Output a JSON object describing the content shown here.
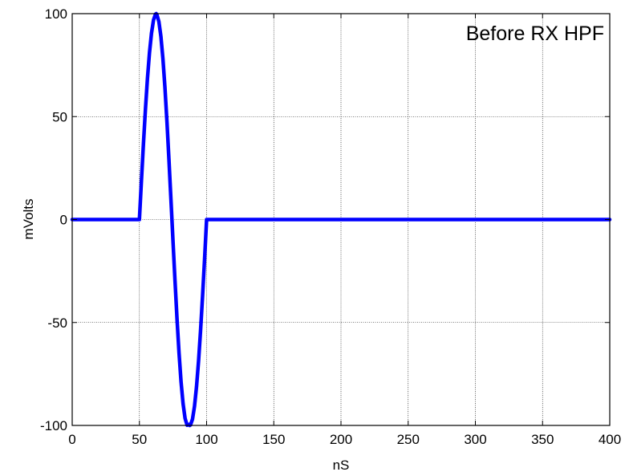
{
  "chart_data": {
    "type": "line",
    "title": "",
    "xlabel": "nS",
    "ylabel": "mVolts",
    "xlim": [
      0,
      400
    ],
    "ylim": [
      -100,
      100
    ],
    "xticks": [
      0,
      50,
      100,
      150,
      200,
      250,
      300,
      350,
      400
    ],
    "yticks": [
      -100,
      -50,
      0,
      50,
      100
    ],
    "x_tick_labels": [
      "0",
      "50",
      "100",
      "150",
      "200",
      "250",
      "300",
      "350",
      "400"
    ],
    "y_tick_labels": [
      "-100",
      "-50",
      "0",
      "50",
      "100"
    ],
    "grid": true,
    "legend_position": "top-right",
    "series": [
      {
        "name": "Before RX HPF",
        "color": "#0000ff",
        "x": [
          0,
          49,
          50,
          51.5,
          53,
          54.5,
          56,
          57.5,
          59,
          60.5,
          62,
          62.5,
          63,
          64.5,
          66,
          67.5,
          69,
          70.5,
          72,
          73.5,
          75,
          76.5,
          78,
          79.5,
          81,
          82.5,
          84,
          85.5,
          87,
          87.5,
          88,
          89.5,
          91,
          92.5,
          94,
          95.5,
          97,
          98.5,
          100,
          400
        ],
        "y": [
          0,
          0,
          0,
          18.7,
          36.8,
          53.6,
          68.6,
          81.0,
          90.5,
          96.9,
          99.8,
          100,
          99.5,
          96.1,
          88.9,
          78.1,
          64.2,
          47.5,
          28.9,
          9.3,
          -10.5,
          -29.9,
          -48.3,
          -64.9,
          -78.9,
          -89.5,
          -96.6,
          -99.9,
          -99.5,
          -100,
          -99.8,
          -97.0,
          -90.7,
          -81.2,
          -68.9,
          -54.0,
          -37.2,
          -19.2,
          0,
          0
        ]
      }
    ]
  }
}
